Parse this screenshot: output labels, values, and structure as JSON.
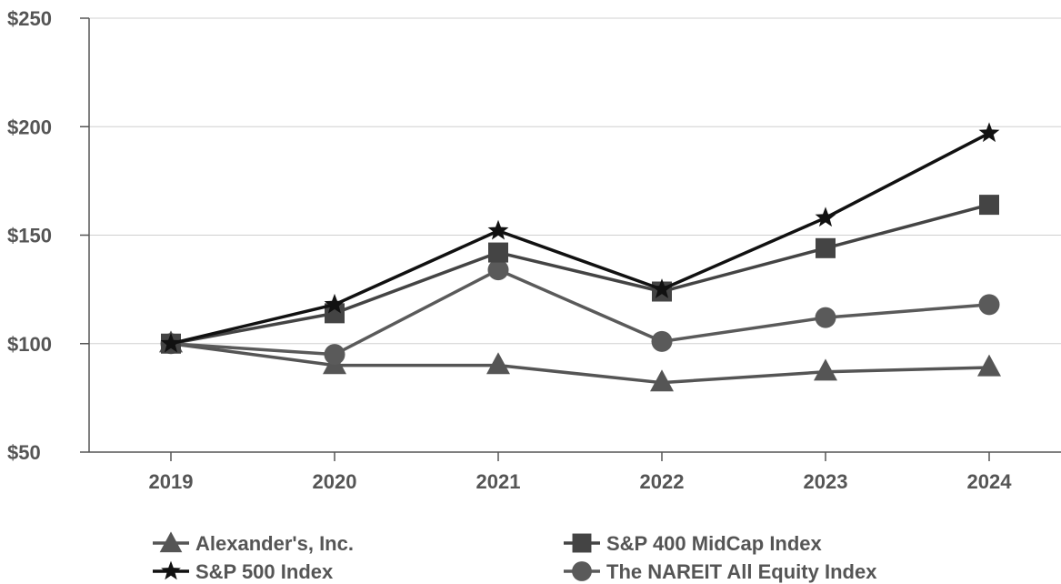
{
  "chart_data": {
    "type": "line",
    "title": "",
    "xlabel": "",
    "ylabel": "",
    "categories": [
      "2019",
      "2020",
      "2021",
      "2022",
      "2023",
      "2024"
    ],
    "y_ticks": [
      "$50",
      "$100",
      "$150",
      "$200",
      "$250"
    ],
    "y_tick_values": [
      50,
      100,
      150,
      200,
      250
    ],
    "ylim": [
      50,
      250
    ],
    "grid": "horizontal",
    "legend_position": "bottom",
    "series": [
      {
        "name": "Alexander's, Inc.",
        "marker": "triangle",
        "color": "#555555",
        "values": [
          100,
          90,
          90,
          82,
          87,
          89
        ]
      },
      {
        "name": "S&P 400 MidCap Index",
        "marker": "square",
        "color": "#444444",
        "values": [
          100,
          114,
          142,
          124,
          144,
          164
        ]
      },
      {
        "name": "S&P 500 Index",
        "marker": "star",
        "color": "#111111",
        "values": [
          100,
          118,
          152,
          125,
          158,
          197
        ]
      },
      {
        "name": "The NAREIT All Equity Index",
        "marker": "circle",
        "color": "#5a5a5a",
        "values": [
          100,
          95,
          134,
          101,
          112,
          118
        ]
      }
    ]
  }
}
